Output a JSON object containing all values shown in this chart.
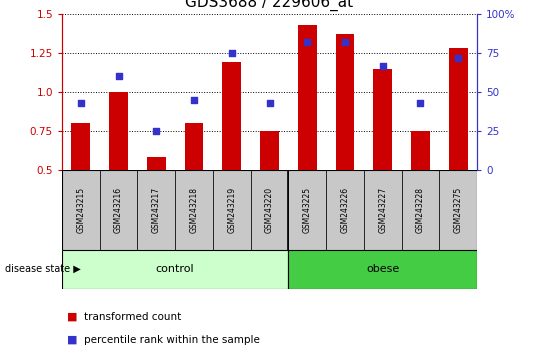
{
  "title": "GDS3688 / 229606_at",
  "samples": [
    "GSM243215",
    "GSM243216",
    "GSM243217",
    "GSM243218",
    "GSM243219",
    "GSM243220",
    "GSM243225",
    "GSM243226",
    "GSM243227",
    "GSM243228",
    "GSM243275"
  ],
  "red_values": [
    0.8,
    1.0,
    0.58,
    0.8,
    1.19,
    0.75,
    1.43,
    1.37,
    1.15,
    0.75,
    1.28
  ],
  "blue_percentiles": [
    43,
    60,
    25,
    45,
    75,
    43,
    82,
    82,
    67,
    43,
    72
  ],
  "ylim": [
    0.5,
    1.5
  ],
  "yticks_left": [
    0.5,
    0.75,
    1.0,
    1.25,
    1.5
  ],
  "yticks_right": [
    0,
    25,
    50,
    75,
    100
  ],
  "n_control": 6,
  "n_obese": 5,
  "control_label": "control",
  "obese_label": "obese",
  "disease_state_label": "disease state",
  "legend_red": "transformed count",
  "legend_blue": "percentile rank within the sample",
  "bar_color": "#cc0000",
  "dot_color": "#3333cc",
  "control_bg": "#ccffcc",
  "obese_bg": "#44cc44",
  "sample_bg": "#c8c8c8",
  "title_fontsize": 11,
  "bar_width": 0.5
}
